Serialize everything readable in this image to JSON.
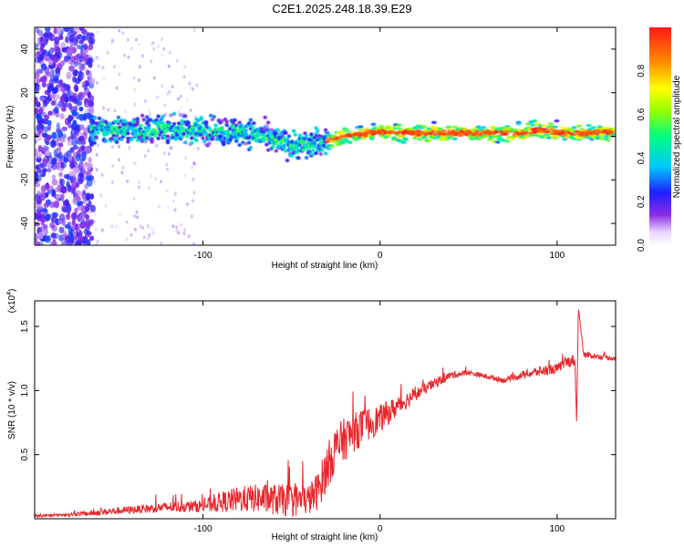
{
  "title": "C2E1.2025.248.18.39.E29",
  "colors": {
    "line": "#e8262a",
    "axis": "#000000",
    "background": "#ffffff"
  },
  "chart_data": [
    {
      "type": "heatmap",
      "title": "C2E1.2025.248.18.39.E29",
      "xlabel": "Height of straight line (km)",
      "ylabel": "Frequency (Hz)",
      "xlim": [
        -195,
        133
      ],
      "ylim": [
        -50,
        50
      ],
      "x_ticks": [
        -100,
        0,
        100
      ],
      "x_tick_labels": [
        "-100",
        "0",
        "100"
      ],
      "y_ticks": [
        -40,
        -20,
        0,
        20,
        40
      ],
      "y_tick_labels": [
        "-40",
        "-20",
        "0",
        "20",
        "40"
      ],
      "ridge": {
        "description": "dominant frequency ridge (Hz) vs height (km)",
        "x": [
          -163,
          -140,
          -120,
          -100,
          -80,
          -70,
          -60,
          -50,
          -45,
          -40,
          -35,
          -30,
          -20,
          -10,
          0,
          20,
          50,
          80,
          90,
          100,
          110,
          120,
          133
        ],
        "frequency": [
          3,
          3,
          3,
          3,
          2,
          1,
          -2,
          -4,
          -4,
          -4,
          -3,
          -2,
          0,
          1,
          2,
          1.5,
          1.5,
          1.5,
          3,
          2,
          1,
          1.5,
          2
        ]
      },
      "colorbar": {
        "label": "Normalized spectral amplitude",
        "range": [
          0.0,
          1.0
        ],
        "ticks": [
          0.0,
          0.2,
          0.4,
          0.6,
          0.8
        ],
        "tick_labels": [
          "0.0",
          "0.2",
          "0.4",
          "0.6",
          "0.8"
        ]
      }
    },
    {
      "type": "line",
      "xlabel": "Height of straight line (km)",
      "ylabel": "SNR (10 * v/v)",
      "y_multiplier": "(x10",
      "y_multiplier_exp": "4",
      "y_multiplier_close": ")",
      "xlim": [
        -195,
        133
      ],
      "ylim": [
        0,
        1.7
      ],
      "x_ticks": [
        -100,
        0,
        100
      ],
      "x_tick_labels": [
        "-100",
        "0",
        "100"
      ],
      "y_ticks": [
        0.5,
        1.0,
        1.5
      ],
      "y_tick_labels": [
        "0.5",
        "1.0",
        "1.5"
      ],
      "series": [
        {
          "name": "SNR",
          "x": [
            -195,
            -180,
            -165,
            -150,
            -140,
            -120,
            -100,
            -90,
            -80,
            -70,
            -60,
            -50,
            -40,
            -35,
            -30,
            -25,
            -20,
            -10,
            0,
            10,
            20,
            30,
            40,
            50,
            60,
            70,
            80,
            90,
            100,
            105,
            110,
            111,
            112,
            115,
            120,
            133
          ],
          "y": [
            0.02,
            0.03,
            0.04,
            0.06,
            0.07,
            0.09,
            0.1,
            0.13,
            0.15,
            0.16,
            0.15,
            0.14,
            0.15,
            0.22,
            0.4,
            0.55,
            0.62,
            0.72,
            0.78,
            0.88,
            0.97,
            1.05,
            1.12,
            1.14,
            1.11,
            1.08,
            1.12,
            1.15,
            1.17,
            1.22,
            1.24,
            0.75,
            1.65,
            1.28,
            1.27,
            1.25
          ],
          "noise_amplitude": [
            0.01,
            0.01,
            0.02,
            0.03,
            0.03,
            0.04,
            0.05,
            0.08,
            0.1,
            0.11,
            0.12,
            0.13,
            0.12,
            0.15,
            0.18,
            0.18,
            0.17,
            0.14,
            0.11,
            0.08,
            0.05,
            0.04,
            0.03,
            0.02,
            0.02,
            0.02,
            0.03,
            0.04,
            0.04,
            0.04,
            0.05,
            0.0,
            0.0,
            0.03,
            0.02,
            0.02
          ]
        }
      ]
    }
  ]
}
